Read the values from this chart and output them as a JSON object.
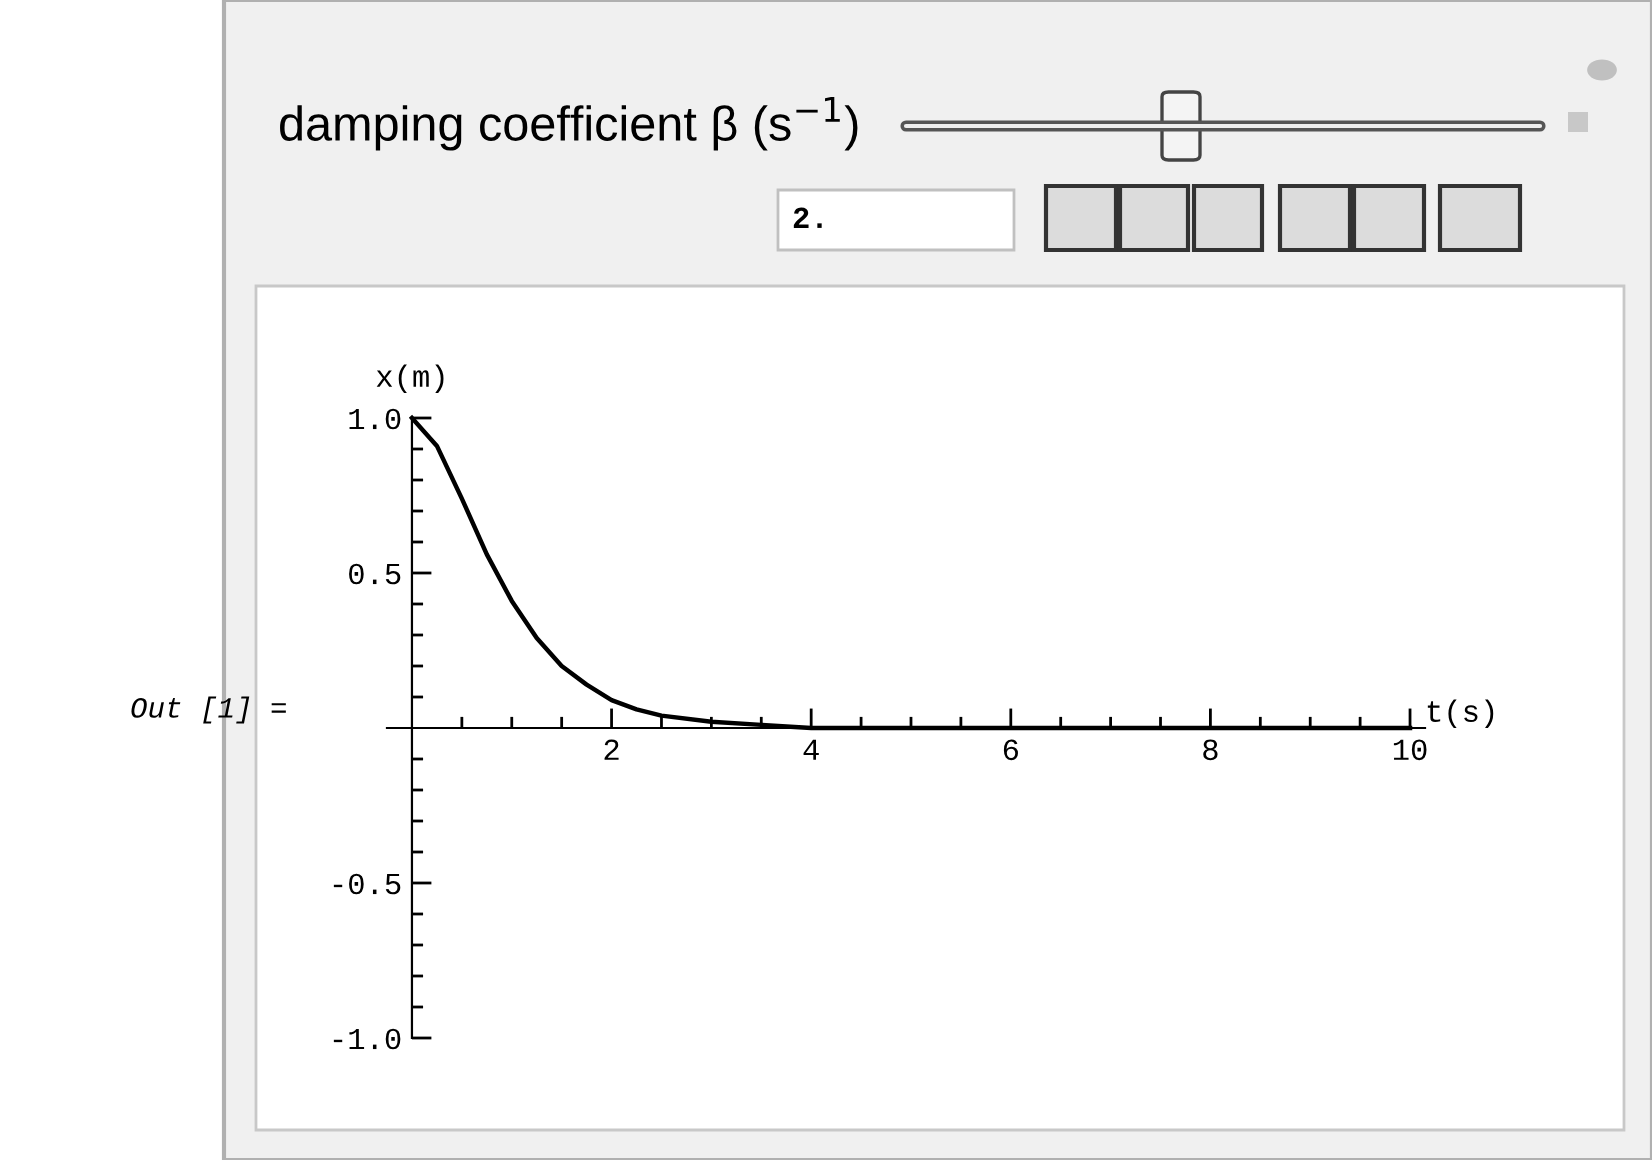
{
  "chart_data": {
    "type": "line",
    "xlabel": "t(s)",
    "ylabel": "x(m)",
    "annotations": [
      "damping coefficient β (s$^{−1}$)",
      "2.",
      "Out [1] ="
    ],
    "x": [
      0,
      0.25,
      0.5,
      0.75,
      1,
      1.25,
      1.5,
      1.75,
      2,
      2.25,
      2.5,
      3,
      3.5,
      4,
      5,
      6,
      7,
      8,
      9,
      10
    ],
    "series": [
      {
        "color": "#000000",
        "values": [
          1,
          0.91,
          0.74,
          0.56,
          0.41,
          0.29,
          0.2,
          0.14,
          0.09,
          0.06,
          0.04,
          0.02,
          0.01,
          0,
          0,
          0,
          0,
          0,
          0,
          0
        ]
      }
    ],
    "xlim": [
      -0.25,
      10.15
    ],
    "ylim": [
      -1,
      1
    ],
    "xticks": [
      {
        "value": 0.5,
        "label": null
      },
      {
        "value": 1,
        "label": null
      },
      {
        "value": 1.5,
        "label": null
      },
      2,
      {
        "value": 2.5,
        "label": null
      },
      {
        "value": 3,
        "label": null
      },
      {
        "value": 3.5,
        "label": null
      },
      4,
      {
        "value": 4.5,
        "label": null
      },
      {
        "value": 5,
        "label": null
      },
      {
        "value": 5.5,
        "label": null
      },
      6,
      {
        "value": 6.5,
        "label": null
      },
      {
        "value": 7,
        "label": null
      },
      {
        "value": 7.5,
        "label": null
      },
      8,
      {
        "value": 8.5,
        "label": null
      },
      {
        "value": 9,
        "label": null
      },
      {
        "value": 9.5,
        "label": null
      },
      10
    ],
    "yticks": [
      {
        "value": -1,
        "label": "-1.0"
      },
      {
        "value": -0.9,
        "label": null
      },
      {
        "value": -0.8,
        "label": null
      },
      {
        "value": -0.7,
        "label": null
      },
      {
        "value": -0.6,
        "label": null
      },
      {
        "value": -0.5,
        "label": "-0.5"
      },
      {
        "value": -0.4,
        "label": null
      },
      {
        "value": -0.3,
        "label": null
      },
      {
        "value": -0.2,
        "label": null
      },
      {
        "value": -0.1,
        "label": null
      },
      {
        "value": 0.1,
        "label": null
      },
      {
        "value": 0.2,
        "label": null
      },
      {
        "value": 0.3,
        "label": null
      },
      {
        "value": 0.4,
        "label": null
      },
      {
        "value": 0.5,
        "label": "0.5"
      },
      {
        "value": 0.6,
        "label": null
      },
      {
        "value": 0.7,
        "label": null
      },
      {
        "value": 0.8,
        "label": null
      },
      {
        "value": 0.9,
        "label": null
      },
      {
        "value": 1,
        "label": "1.0"
      }
    ],
    "grid": false,
    "marker": "none",
    "line_style": "solid"
  }
}
